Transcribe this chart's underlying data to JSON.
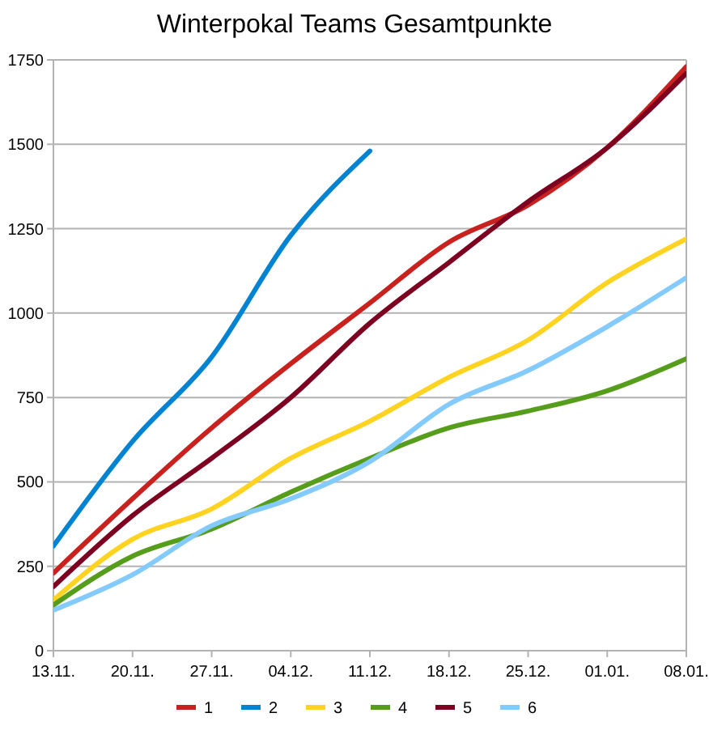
{
  "chart_data": {
    "type": "line",
    "title": "Winterpokal Teams Gesamtpunkte",
    "categories": [
      "13.11.",
      "20.11.",
      "27.11.",
      "04.12.",
      "11.12.",
      "18.12.",
      "25.12.",
      "01.01.",
      "08.01."
    ],
    "ylim": [
      0,
      1750
    ],
    "yticks": [
      0,
      250,
      500,
      750,
      1000,
      1250,
      1500,
      1750
    ],
    "grid": "y",
    "legend": "bottom",
    "marker": "none",
    "line_style": "solid",
    "series": [
      {
        "name": "1",
        "color": "#c9211e",
        "values": [
          230,
          450,
          660,
          850,
          1030,
          1210,
          1320,
          1490,
          1730
        ]
      },
      {
        "name": "2",
        "color": "#0084d1",
        "values": [
          310,
          620,
          870,
          1230,
          1480,
          null,
          null,
          null,
          null
        ]
      },
      {
        "name": "3",
        "color": "#ffd320",
        "values": [
          150,
          330,
          420,
          570,
          680,
          810,
          920,
          1090,
          1220
        ]
      },
      {
        "name": "4",
        "color": "#579d1c",
        "values": [
          135,
          280,
          360,
          470,
          570,
          660,
          710,
          770,
          865
        ]
      },
      {
        "name": "5",
        "color": "#7e0021",
        "values": [
          190,
          400,
          570,
          750,
          970,
          1150,
          1330,
          1490,
          1710
        ]
      },
      {
        "name": "6",
        "color": "#83caff",
        "values": [
          120,
          225,
          370,
          450,
          560,
          730,
          830,
          960,
          1105
        ]
      }
    ]
  }
}
